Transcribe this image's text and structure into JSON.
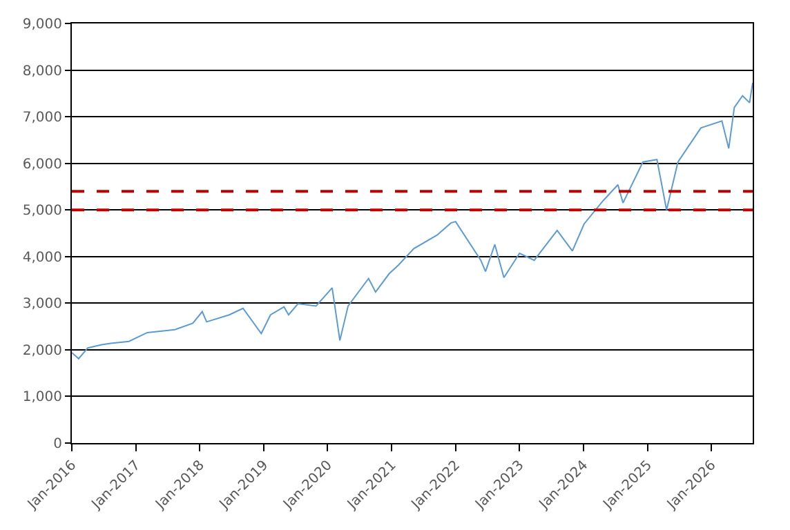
{
  "chart_data": {
    "type": "line",
    "x": [
      "2016-01-01",
      "2016-02-09",
      "2016-04-01",
      "2016-06-19",
      "2016-08-10",
      "2016-11-22",
      "2017-03-07",
      "2017-08-10",
      "2017-11-22",
      "2018-01-15",
      "2018-02-09",
      "2018-06-18",
      "2018-09-05",
      "2018-12-18",
      "2019-02-09",
      "2019-04-27",
      "2019-05-23",
      "2019-07-16",
      "2019-10-27",
      "2020-01-27",
      "2020-03-11",
      "2020-04-27",
      "2020-08-22",
      "2020-10-01",
      "2020-12-17",
      "2021-02-09",
      "2021-05-07",
      "2021-09-17",
      "2021-12-05",
      "2022-01-01",
      "2022-05-25",
      "2022-06-21",
      "2022-08-13",
      "2022-10-04",
      "2023-01-01",
      "2023-03-26",
      "2023-08-04",
      "2023-10-30",
      "2024-01-05",
      "2024-04-23",
      "2024-07-16",
      "2024-08-14",
      "2024-12-06",
      "2025-02-24",
      "2025-04-20",
      "2025-06-24",
      "2025-11-02",
      "2026-03-02",
      "2026-04-10",
      "2026-05-12",
      "2026-06-28",
      "2026-08-07",
      "2026-08-25"
    ],
    "series": [
      {
        "color": "#5b9bd5",
        "values": [
          1940,
          1810,
          2040,
          2110,
          2140,
          2180,
          2370,
          2430,
          2570,
          2820,
          2600,
          2750,
          2890,
          2350,
          2750,
          2920,
          2750,
          2990,
          2940,
          3330,
          2200,
          2940,
          3530,
          3240,
          3630,
          3820,
          4170,
          4460,
          4720,
          4750,
          3920,
          3680,
          4260,
          3550,
          4070,
          3920,
          4560,
          4120,
          4700,
          5200,
          5540,
          5150,
          6030,
          6080,
          5000,
          6030,
          6760,
          6910,
          6320,
          7200,
          7450,
          7300,
          7730
        ]
      }
    ],
    "xlim": [
      "2016-01-01",
      "2026-08-25"
    ],
    "xticks": [
      {
        "value": "2016-01-01",
        "label": "Jan-2016"
      },
      {
        "value": "2017-01-01",
        "label": "Jan-2017"
      },
      {
        "value": "2018-01-01",
        "label": "Jan-2018"
      },
      {
        "value": "2019-01-01",
        "label": "Jan-2019"
      },
      {
        "value": "2020-01-01",
        "label": "Jan-2020"
      },
      {
        "value": "2021-01-01",
        "label": "Jan-2021"
      },
      {
        "value": "2022-01-01",
        "label": "Jan-2022"
      },
      {
        "value": "2023-01-01",
        "label": "Jan-2023"
      },
      {
        "value": "2024-01-01",
        "label": "Jan-2024"
      },
      {
        "value": "2025-01-01",
        "label": "Jan-2025"
      },
      {
        "value": "2026-01-01",
        "label": "Jan-2026"
      }
    ],
    "ylim": [
      0,
      9000
    ],
    "yticks": [
      {
        "value": 0,
        "label": "0"
      },
      {
        "value": 1000,
        "label": "1,000"
      },
      {
        "value": 2000,
        "label": "2,000"
      },
      {
        "value": 3000,
        "label": "3,000"
      },
      {
        "value": 4000,
        "label": "4,000"
      },
      {
        "value": 5000,
        "label": "5,000"
      },
      {
        "value": 6000,
        "label": "6,000"
      },
      {
        "value": 7000,
        "label": "7,000"
      },
      {
        "value": 8000,
        "label": "8,000"
      },
      {
        "value": 9000,
        "label": "9,000"
      }
    ],
    "grid": "y",
    "marker": "none",
    "line_style": "solid",
    "ref_lines": [
      {
        "axis": "y",
        "value": 5000,
        "label": null,
        "color": "#c00000",
        "line_style": "dashed"
      },
      {
        "axis": "y",
        "value": 5400,
        "label": null,
        "color": "#c00000",
        "line_style": "dashed"
      }
    ]
  }
}
